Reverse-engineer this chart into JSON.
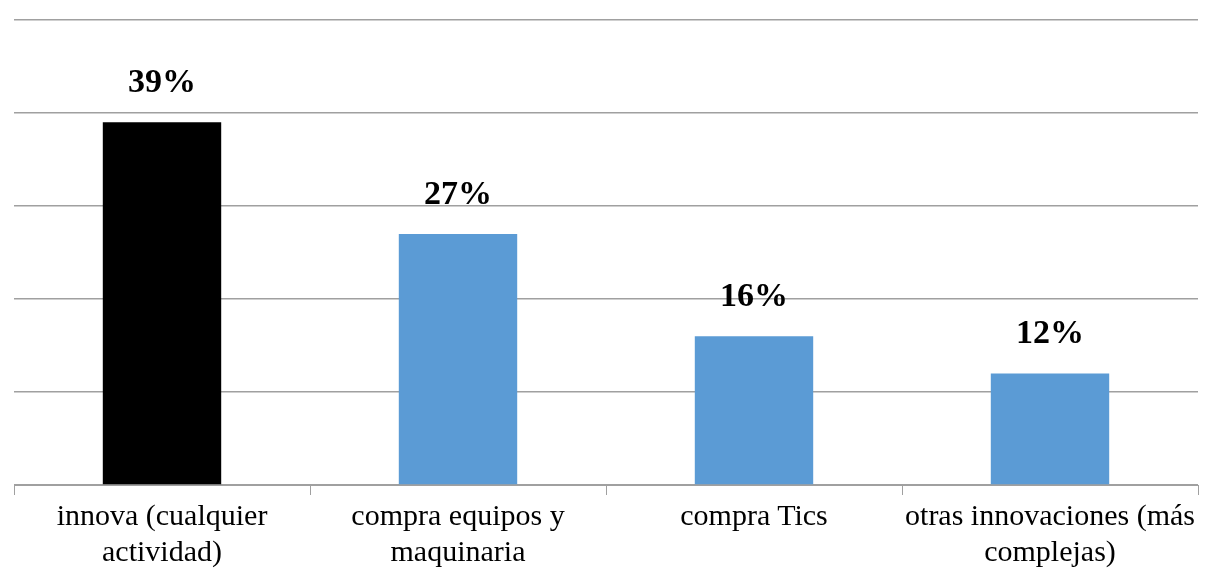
{
  "chart_data": {
    "type": "bar",
    "categories": [
      "innova (cualquier actividad)",
      "compra equipos y maquinaria",
      "compra Tics",
      "otras innovaciones (más complejas)"
    ],
    "values": [
      39,
      27,
      16,
      12
    ],
    "colors": [
      "#000000",
      "#5b9bd5",
      "#5b9bd5",
      "#5b9bd5"
    ],
    "value_labels": [
      "39%",
      "27%",
      "16%",
      "12%"
    ],
    "ylim": [
      0,
      50
    ],
    "yticks": [
      {
        "value": 0,
        "label": null
      },
      {
        "value": 10,
        "label": null
      },
      {
        "value": 20,
        "label": null
      },
      {
        "value": 30,
        "label": null
      },
      {
        "value": 40,
        "label": null
      },
      {
        "value": 50,
        "label": null
      }
    ],
    "grid": "y",
    "legend": false,
    "tick_labels": "x"
  }
}
